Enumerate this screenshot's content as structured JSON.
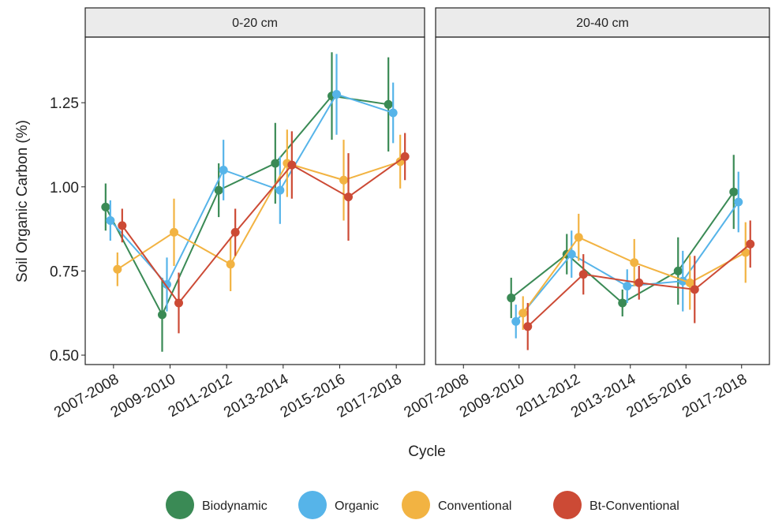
{
  "chart_data": [
    {
      "type": "line",
      "title": "0-20 cm",
      "ylabel": "Soil Organic Carbon (%)",
      "xlabel": "Cycle",
      "categories": [
        "2007-2008",
        "2009-2010",
        "2011-2012",
        "2013-2014",
        "2015-2016",
        "2017-2018"
      ],
      "ylim": [
        0.472,
        1.445
      ],
      "yticks": [
        {
          "value": 0.5,
          "label": "0.50"
        },
        0.75,
        {
          "value": 1,
          "label": "1.00"
        },
        1.25
      ],
      "series": [
        {
          "name": "Biodynamic",
          "color": "#3a8a55",
          "values": [
            0.94,
            0.62,
            0.99,
            1.07,
            1.27,
            1.245
          ],
          "errors": [
            0.07,
            0.11,
            0.08,
            0.12,
            0.13,
            0.14
          ]
        },
        {
          "name": "Organic",
          "color": "#56b4e9",
          "values": [
            0.9,
            0.71,
            1.05,
            0.99,
            1.275,
            1.22
          ],
          "errors": [
            0.06,
            0.08,
            0.09,
            0.1,
            0.12,
            0.09
          ]
        },
        {
          "name": "Conventional",
          "color": "#f2b342",
          "values": [
            0.755,
            0.865,
            0.77,
            1.07,
            1.02,
            1.075
          ],
          "errors": [
            0.05,
            0.1,
            0.08,
            0.1,
            0.12,
            0.08
          ]
        },
        {
          "name": "Bt-Conventional",
          "color": "#cc4a35",
          "values": [
            0.885,
            0.655,
            0.865,
            1.065,
            0.97,
            1.09
          ],
          "errors": [
            0.05,
            0.09,
            0.07,
            0.1,
            0.13,
            0.07
          ]
        }
      ]
    },
    {
      "type": "line",
      "title": "20-40 cm",
      "categories": [
        "2007-2008",
        "2009-2010",
        "2011-2012",
        "2013-2014",
        "2015-2016",
        "2017-2018"
      ],
      "ylim": [
        0.472,
        1.445
      ],
      "series": [
        {
          "color": "#3a8a55",
          "values": [
            null,
            0.67,
            0.8,
            0.655,
            0.75,
            0.985
          ],
          "errors": [
            null,
            0.06,
            0.06,
            0.04,
            0.1,
            0.11
          ]
        },
        {
          "color": "#56b4e9",
          "values": [
            null,
            0.6,
            0.8,
            0.705,
            0.72,
            0.955
          ],
          "errors": [
            null,
            0.05,
            0.07,
            0.05,
            0.09,
            0.09
          ]
        },
        {
          "color": "#f2b342",
          "values": [
            null,
            0.625,
            0.85,
            0.775,
            0.715,
            0.805
          ],
          "errors": [
            null,
            0.05,
            0.07,
            0.07,
            0.08,
            0.09
          ]
        },
        {
          "color": "#cc4a35",
          "values": [
            null,
            0.585,
            0.74,
            0.715,
            0.695,
            0.83
          ],
          "errors": [
            null,
            0.07,
            0.06,
            0.05,
            0.1,
            0.07
          ]
        }
      ]
    }
  ]
}
